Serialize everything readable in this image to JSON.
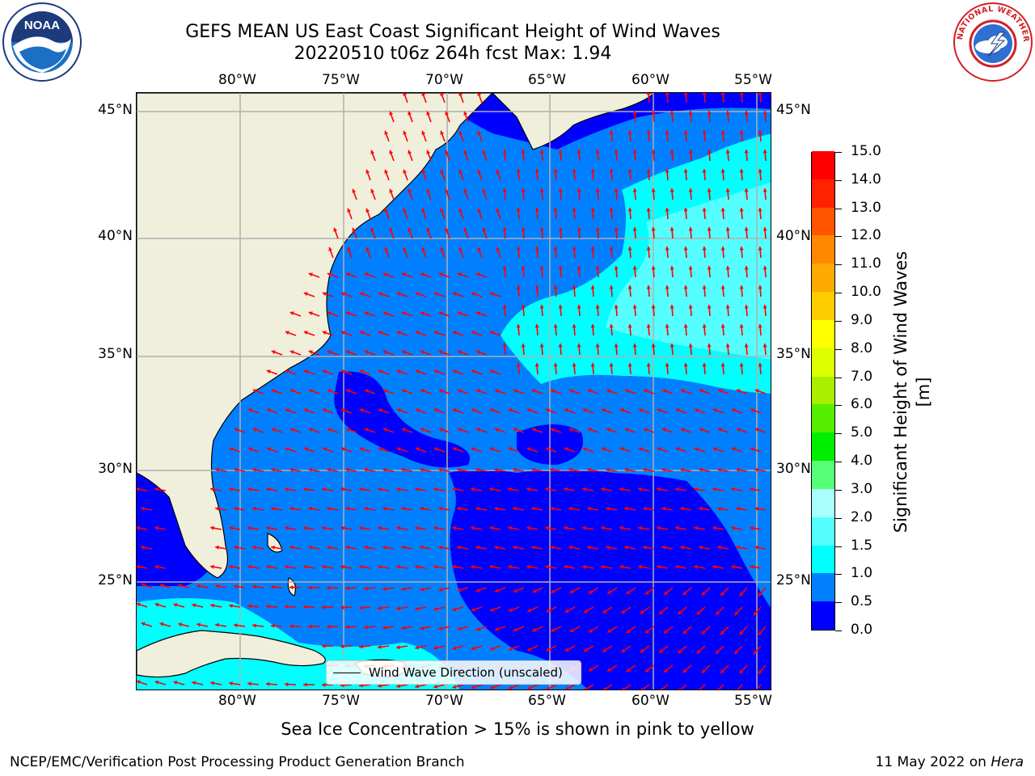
{
  "title": {
    "line1": "GEFS MEAN US East Coast Significant Height of Wind Waves",
    "line2": "20220510 t06z 264h fcst   Max: 1.94"
  },
  "logos": {
    "left": {
      "text": "NOAA",
      "icon": "noaa-logo-icon"
    },
    "right": {
      "text": "NATIONAL WEATHER SERVICE",
      "icon": "nws-logo-icon"
    }
  },
  "map": {
    "projection": "lat-lon",
    "extent": {
      "lon_min": -85,
      "lon_max": -54.4,
      "lat_min": 20.5,
      "lat_max": 45.8
    },
    "gridlines": true,
    "lon_labels_top": [
      "80°W",
      "75°W",
      "70°W",
      "65°W",
      "60°W",
      "55°W"
    ],
    "lon_labels_bottom": [
      "80°W",
      "75°W",
      "70°W",
      "65°W",
      "60°W",
      "55°W"
    ],
    "lat_labels_left": [
      "45°N",
      "40°N",
      "35°N",
      "30°N",
      "25°N"
    ],
    "lat_labels_right": [
      "45°N",
      "40°N",
      "35°N",
      "30°N",
      "25°N"
    ],
    "land_color": "#efefdc",
    "arrow_color": "#ff0000",
    "legend": "Wind Wave Direction (unscaled)"
  },
  "colorbar": {
    "title": "Significant Height of Wind Waves [m]",
    "tick_labels": [
      "0.0",
      "0.5",
      "1.0",
      "1.5",
      "2.0",
      "3.0",
      "4.0",
      "5.0",
      "6.0",
      "7.0",
      "8.0",
      "9.0",
      "10.0",
      "11.0",
      "12.0",
      "13.0",
      "14.0",
      "15.0"
    ],
    "colors": [
      "#0000ff",
      "#0080ff",
      "#00ffff",
      "#55ffff",
      "#aaffff",
      "#55ff77",
      "#00ee00",
      "#55ee00",
      "#aaee00",
      "#ddff00",
      "#ffff00",
      "#ffcc00",
      "#ffaa00",
      "#ff8800",
      "#ff5500",
      "#ff2200",
      "#ff0000"
    ]
  },
  "sea_ice_note": "Sea Ice Concentration > 15% is shown in pink to yellow",
  "footer": {
    "left": "NCEP/EMC/Verification Post Processing Product Generation Branch",
    "right_prefix": "11 May 2022 on ",
    "right_machine": "Hera"
  }
}
